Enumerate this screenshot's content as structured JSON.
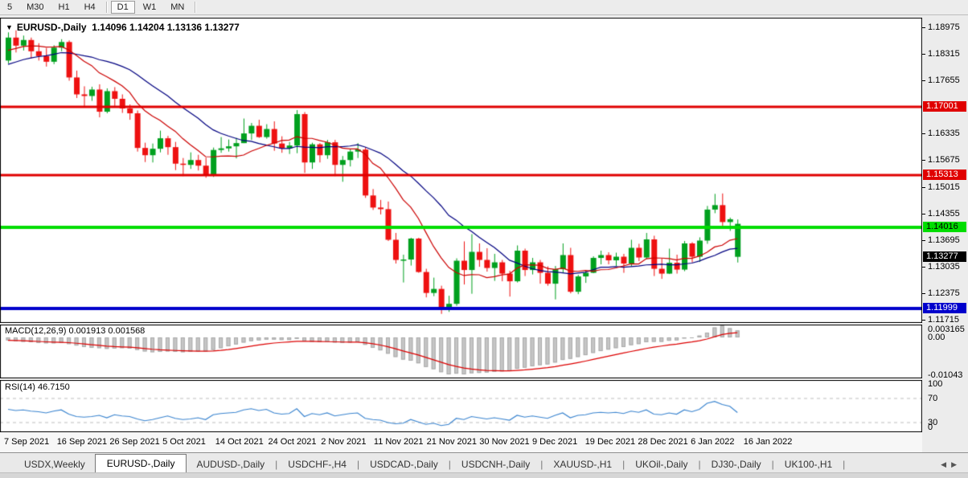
{
  "toolbar": {
    "timeframes": [
      {
        "label": "5",
        "active": false,
        "sep_after": false
      },
      {
        "label": "M30",
        "active": false,
        "sep_after": false
      },
      {
        "label": "H1",
        "active": false,
        "sep_after": false
      },
      {
        "label": "H4",
        "active": false,
        "sep_after": true
      },
      {
        "label": "D1",
        "active": true,
        "sep_after": false
      },
      {
        "label": "W1",
        "active": false,
        "sep_after": false
      },
      {
        "label": "MN",
        "active": false,
        "sep_after": true
      }
    ]
  },
  "chart_data": {
    "type": "candlestick",
    "title": {
      "symbol": "EURUSD-,Daily",
      "ohlc_text": "1.14096 1.14204 1.13136 1.13277",
      "open": 1.14096,
      "high": 1.14204,
      "low": 1.13136,
      "close": 1.13277
    },
    "colors": {
      "bull": "#00a01e",
      "bear": "#ee1111",
      "ma_fast": "#cc0000",
      "ma_slow": "#000080",
      "macd_hist": "#c6c6c6",
      "macd_signal": "#dd0000",
      "rsi_line": "#3b85d0",
      "hline_red": "#e00000",
      "hline_green": "#00dd00",
      "hline_blue": "#0000cc"
    },
    "price_axis": {
      "ticks": [
        "1.18975",
        "1.18315",
        "1.17655",
        "1.16335",
        "1.15675",
        "1.15015",
        "1.14355",
        "1.13695",
        "1.13035",
        "1.12375",
        "1.11715"
      ],
      "badges": [
        {
          "label": "1.17001",
          "price": 1.17001,
          "bg": "#e00000",
          "fg": "#ffffff"
        },
        {
          "label": "1.15313",
          "price": 1.15313,
          "bg": "#e00000",
          "fg": "#ffffff"
        },
        {
          "label": "1.14016",
          "price": 1.14016,
          "bg": "#00dd00",
          "fg": "#000000"
        },
        {
          "label": "1.13277",
          "price": 1.13277,
          "bg": "#000000",
          "fg": "#ffffff"
        },
        {
          "label": "1.11999",
          "price": 1.11999,
          "bg": "#0000cc",
          "fg": "#ffffff"
        }
      ]
    },
    "hlines": [
      {
        "price": 1.17001,
        "color": "#e00000",
        "width": 3
      },
      {
        "price": 1.15313,
        "color": "#e00000",
        "width": 3
      },
      {
        "price": 1.14016,
        "color": "#00dd00",
        "width": 4
      },
      {
        "price": 1.11999,
        "color": "#0000cc",
        "width": 4
      }
    ],
    "x_axis_labels": [
      "7 Sep 2021",
      "16 Sep 2021",
      "26 Sep 2021",
      "5 Oct 2021",
      "14 Oct 2021",
      "24 Oct 2021",
      "2 Nov 2021",
      "11 Nov 2021",
      "21 Nov 2021",
      "30 Nov 2021",
      "9 Dec 2021",
      "19 Dec 2021",
      "28 Dec 2021",
      "6 Jan 2022",
      "16 Jan 2022"
    ],
    "ma": {
      "fast_period": 10,
      "slow_period": 20
    },
    "last_bar_rendered_bullish": true,
    "candles": [
      [
        1.1815,
        1.1885,
        1.1808,
        1.1872
      ],
      [
        1.1872,
        1.189,
        1.1835,
        1.1852
      ],
      [
        1.1852,
        1.1877,
        1.184,
        1.1866
      ],
      [
        1.1866,
        1.1872,
        1.182,
        1.1838
      ],
      [
        1.1838,
        1.1858,
        1.1815,
        1.1826
      ],
      [
        1.1826,
        1.1846,
        1.18,
        1.1812
      ],
      [
        1.1812,
        1.1853,
        1.1806,
        1.1847
      ],
      [
        1.1847,
        1.1868,
        1.1838,
        1.1861
      ],
      [
        1.1861,
        1.1865,
        1.1765,
        1.1773
      ],
      [
        1.1773,
        1.179,
        1.1722,
        1.1731
      ],
      [
        1.1731,
        1.1751,
        1.17,
        1.1727
      ],
      [
        1.1727,
        1.175,
        1.1715,
        1.1743
      ],
      [
        1.1743,
        1.1756,
        1.1674,
        1.1688
      ],
      [
        1.1688,
        1.1746,
        1.1684,
        1.1739
      ],
      [
        1.1739,
        1.1749,
        1.1702,
        1.172
      ],
      [
        1.172,
        1.1731,
        1.1685,
        1.1696
      ],
      [
        1.1696,
        1.1706,
        1.1668,
        1.1684
      ],
      [
        1.1684,
        1.1691,
        1.1589,
        1.1598
      ],
      [
        1.1598,
        1.1611,
        1.1563,
        1.158
      ],
      [
        1.158,
        1.1609,
        1.1562,
        1.1596
      ],
      [
        1.1596,
        1.1641,
        1.1587,
        1.1622
      ],
      [
        1.1622,
        1.1628,
        1.1581,
        1.16
      ],
      [
        1.16,
        1.1613,
        1.1543,
        1.1559
      ],
      [
        1.1559,
        1.1573,
        1.1528,
        1.1556
      ],
      [
        1.1556,
        1.1587,
        1.1546,
        1.1568
      ],
      [
        1.1568,
        1.1581,
        1.1542,
        1.1554
      ],
      [
        1.1554,
        1.1574,
        1.1524,
        1.1531
      ],
      [
        1.1531,
        1.1599,
        1.1526,
        1.1593
      ],
      [
        1.1593,
        1.1625,
        1.1586,
        1.1597
      ],
      [
        1.1597,
        1.1619,
        1.1589,
        1.1602
      ],
      [
        1.1602,
        1.1623,
        1.1572,
        1.161
      ],
      [
        1.161,
        1.1671,
        1.161,
        1.1634
      ],
      [
        1.1634,
        1.166,
        1.1618,
        1.1653
      ],
      [
        1.1653,
        1.1668,
        1.1623,
        1.1625
      ],
      [
        1.1625,
        1.1657,
        1.1621,
        1.1645
      ],
      [
        1.1645,
        1.1664,
        1.1591,
        1.1609
      ],
      [
        1.1609,
        1.1627,
        1.1586,
        1.1597
      ],
      [
        1.1597,
        1.1613,
        1.1583,
        1.1604
      ],
      [
        1.1604,
        1.1692,
        1.1585,
        1.1682
      ],
      [
        1.1682,
        1.1687,
        1.1536,
        1.1562
      ],
      [
        1.1562,
        1.1611,
        1.1546,
        1.1607
      ],
      [
        1.1607,
        1.161,
        1.1562,
        1.158
      ],
      [
        1.158,
        1.1618,
        1.1571,
        1.1612
      ],
      [
        1.1612,
        1.1618,
        1.1528,
        1.1556
      ],
      [
        1.1556,
        1.1578,
        1.1514,
        1.1568
      ],
      [
        1.1568,
        1.1596,
        1.1552,
        1.1589
      ],
      [
        1.1589,
        1.161,
        1.1573,
        1.1594
      ],
      [
        1.1594,
        1.16,
        1.1474,
        1.148
      ],
      [
        1.148,
        1.1496,
        1.1444,
        1.145
      ],
      [
        1.145,
        1.1469,
        1.1433,
        1.1446
      ],
      [
        1.1446,
        1.1465,
        1.1367,
        1.137
      ],
      [
        1.137,
        1.1387,
        1.1311,
        1.132
      ],
      [
        1.132,
        1.1333,
        1.1264,
        1.1321
      ],
      [
        1.1321,
        1.1375,
        1.1306,
        1.1373
      ],
      [
        1.1373,
        1.1375,
        1.1288,
        1.129
      ],
      [
        1.129,
        1.1298,
        1.1227,
        1.1238
      ],
      [
        1.1238,
        1.1276,
        1.123,
        1.1248
      ],
      [
        1.1248,
        1.1256,
        1.1186,
        1.1199
      ],
      [
        1.1199,
        1.1231,
        1.1191,
        1.1211
      ],
      [
        1.1211,
        1.1324,
        1.1206,
        1.1318
      ],
      [
        1.1318,
        1.1366,
        1.1259,
        1.1295
      ],
      [
        1.1295,
        1.1384,
        1.1236,
        1.134
      ],
      [
        1.134,
        1.1361,
        1.1303,
        1.132
      ],
      [
        1.132,
        1.1349,
        1.1291,
        1.13
      ],
      [
        1.13,
        1.1335,
        1.1268,
        1.1314
      ],
      [
        1.1314,
        1.132,
        1.1267,
        1.1286
      ],
      [
        1.1286,
        1.1293,
        1.1229,
        1.1267
      ],
      [
        1.1267,
        1.1356,
        1.1264,
        1.1343
      ],
      [
        1.1343,
        1.1348,
        1.128,
        1.1295
      ],
      [
        1.1295,
        1.1325,
        1.1284,
        1.1314
      ],
      [
        1.1314,
        1.132,
        1.1261,
        1.1288
      ],
      [
        1.1288,
        1.1304,
        1.1256,
        1.1261
      ],
      [
        1.1261,
        1.1305,
        1.1222,
        1.1297
      ],
      [
        1.1297,
        1.1361,
        1.1287,
        1.1332
      ],
      [
        1.1332,
        1.135,
        1.1237,
        1.1241
      ],
      [
        1.1241,
        1.1283,
        1.1235,
        1.1279
      ],
      [
        1.1279,
        1.1295,
        1.1263,
        1.1288
      ],
      [
        1.1288,
        1.1329,
        1.1287,
        1.1325
      ],
      [
        1.1325,
        1.1343,
        1.1309,
        1.1332
      ],
      [
        1.1332,
        1.1339,
        1.1309,
        1.1319
      ],
      [
        1.1319,
        1.1338,
        1.1305,
        1.1328
      ],
      [
        1.1328,
        1.1335,
        1.1288,
        1.1311
      ],
      [
        1.1311,
        1.137,
        1.1304,
        1.135
      ],
      [
        1.135,
        1.136,
        1.1317,
        1.1326
      ],
      [
        1.1326,
        1.1387,
        1.1322,
        1.1371
      ],
      [
        1.1371,
        1.138,
        1.128,
        1.1298
      ],
      [
        1.1298,
        1.1324,
        1.1273,
        1.1286
      ],
      [
        1.1286,
        1.1348,
        1.1285,
        1.1313
      ],
      [
        1.1313,
        1.1333,
        1.1286,
        1.1296
      ],
      [
        1.1296,
        1.1367,
        1.1292,
        1.1361
      ],
      [
        1.1361,
        1.1364,
        1.1314,
        1.1328
      ],
      [
        1.1328,
        1.1376,
        1.1315,
        1.1368
      ],
      [
        1.1368,
        1.1454,
        1.136,
        1.1445
      ],
      [
        1.1445,
        1.1484,
        1.1436,
        1.1456
      ],
      [
        1.1456,
        1.1485,
        1.1399,
        1.1414
      ],
      [
        1.1414,
        1.1425,
        1.1392,
        1.1421
      ],
      [
        1.14096,
        1.14204,
        1.13136,
        1.13277
      ]
    ],
    "indicators": {
      "macd": {
        "label": "MACD(12,26,9)",
        "values_text": "0.001913 0.001568",
        "main": 0.001913,
        "signal": 0.001568,
        "params": [
          12,
          26,
          9
        ],
        "axis": [
          {
            "label": "0.003165",
            "value": 0.003165
          },
          {
            "label": "0.00",
            "value": 0
          },
          {
            "label": "-0.01043",
            "value": -0.01043
          }
        ],
        "histogram": [
          -0.0008,
          -0.001,
          -0.0012,
          -0.0013,
          -0.0015,
          -0.0016,
          -0.0016,
          -0.0015,
          -0.0018,
          -0.0022,
          -0.0026,
          -0.0028,
          -0.0029,
          -0.0031,
          -0.003,
          -0.0029,
          -0.003,
          -0.0034,
          -0.0038,
          -0.004,
          -0.0039,
          -0.0038,
          -0.0039,
          -0.004,
          -0.0039,
          -0.0038,
          -0.0038,
          -0.0034,
          -0.0029,
          -0.0024,
          -0.0019,
          -0.0014,
          -0.001,
          -0.0008,
          -0.0006,
          -0.0006,
          -0.0007,
          -0.0007,
          -0.0004,
          -0.001,
          -0.0012,
          -0.0013,
          -0.0012,
          -0.0014,
          -0.0015,
          -0.0014,
          -0.0013,
          -0.002,
          -0.0028,
          -0.0035,
          -0.0044,
          -0.0053,
          -0.006,
          -0.0063,
          -0.007,
          -0.008,
          -0.0086,
          -0.0094,
          -0.01,
          -0.0098,
          -0.01,
          -0.0097,
          -0.0096,
          -0.0095,
          -0.0093,
          -0.0092,
          -0.0091,
          -0.0085,
          -0.0082,
          -0.0078,
          -0.0075,
          -0.0073,
          -0.0068,
          -0.0061,
          -0.0058,
          -0.0053,
          -0.0048,
          -0.0042,
          -0.0037,
          -0.0033,
          -0.0029,
          -0.0026,
          -0.0021,
          -0.0018,
          -0.0013,
          -0.0012,
          -0.0012,
          -0.0009,
          -0.0008,
          -0.0003,
          -0.0001,
          0.0005,
          0.0013,
          0.0027,
          0.0032,
          0.0025,
          0.0019
        ]
      },
      "rsi": {
        "label": "RSI(14)",
        "value_text": "46.7150",
        "period": 14,
        "levels": [
          70,
          30
        ],
        "axis": [
          {
            "label": "100",
            "value": 100
          },
          {
            "label": "70",
            "value": 70
          },
          {
            "label": "30",
            "value": 30
          },
          {
            "label": "0",
            "value": 0
          }
        ],
        "series": [
          52,
          50,
          51,
          49,
          48,
          46,
          49,
          51,
          44,
          40,
          39,
          40,
          42,
          38,
          43,
          41,
          40,
          36,
          33,
          35,
          38,
          41,
          37,
          35,
          36,
          38,
          35,
          43,
          45,
          46,
          47,
          51,
          53,
          50,
          52,
          46,
          44,
          45,
          53,
          40,
          45,
          43,
          46,
          41,
          43,
          45,
          46,
          37,
          35,
          34,
          30,
          28,
          29,
          35,
          31,
          27,
          29,
          25,
          27,
          37,
          35,
          40,
          38,
          36,
          38,
          36,
          34,
          42,
          39,
          41,
          39,
          37,
          42,
          46,
          38,
          42,
          43,
          46,
          47,
          46,
          47,
          45,
          49,
          47,
          51,
          44,
          43,
          46,
          44,
          51,
          48,
          52,
          62,
          65,
          60,
          57,
          46.7
        ]
      }
    }
  },
  "tabs": {
    "items": [
      {
        "label": "USDX,Weekly",
        "active": false
      },
      {
        "label": "EURUSD-,Daily",
        "active": true
      },
      {
        "label": "AUDUSD-,Daily",
        "active": false
      },
      {
        "label": "USDCHF-,H4",
        "active": false
      },
      {
        "label": "USDCAD-,Daily",
        "active": false
      },
      {
        "label": "USDCNH-,Daily",
        "active": false
      },
      {
        "label": "XAUUSD-,H1",
        "active": false
      },
      {
        "label": "UKOil-,Daily",
        "active": false
      },
      {
        "label": "DJ30-,Daily",
        "active": false
      },
      {
        "label": "UK100-,H1",
        "active": false
      }
    ],
    "scroll_left": "◀",
    "scroll_right": "▶"
  }
}
